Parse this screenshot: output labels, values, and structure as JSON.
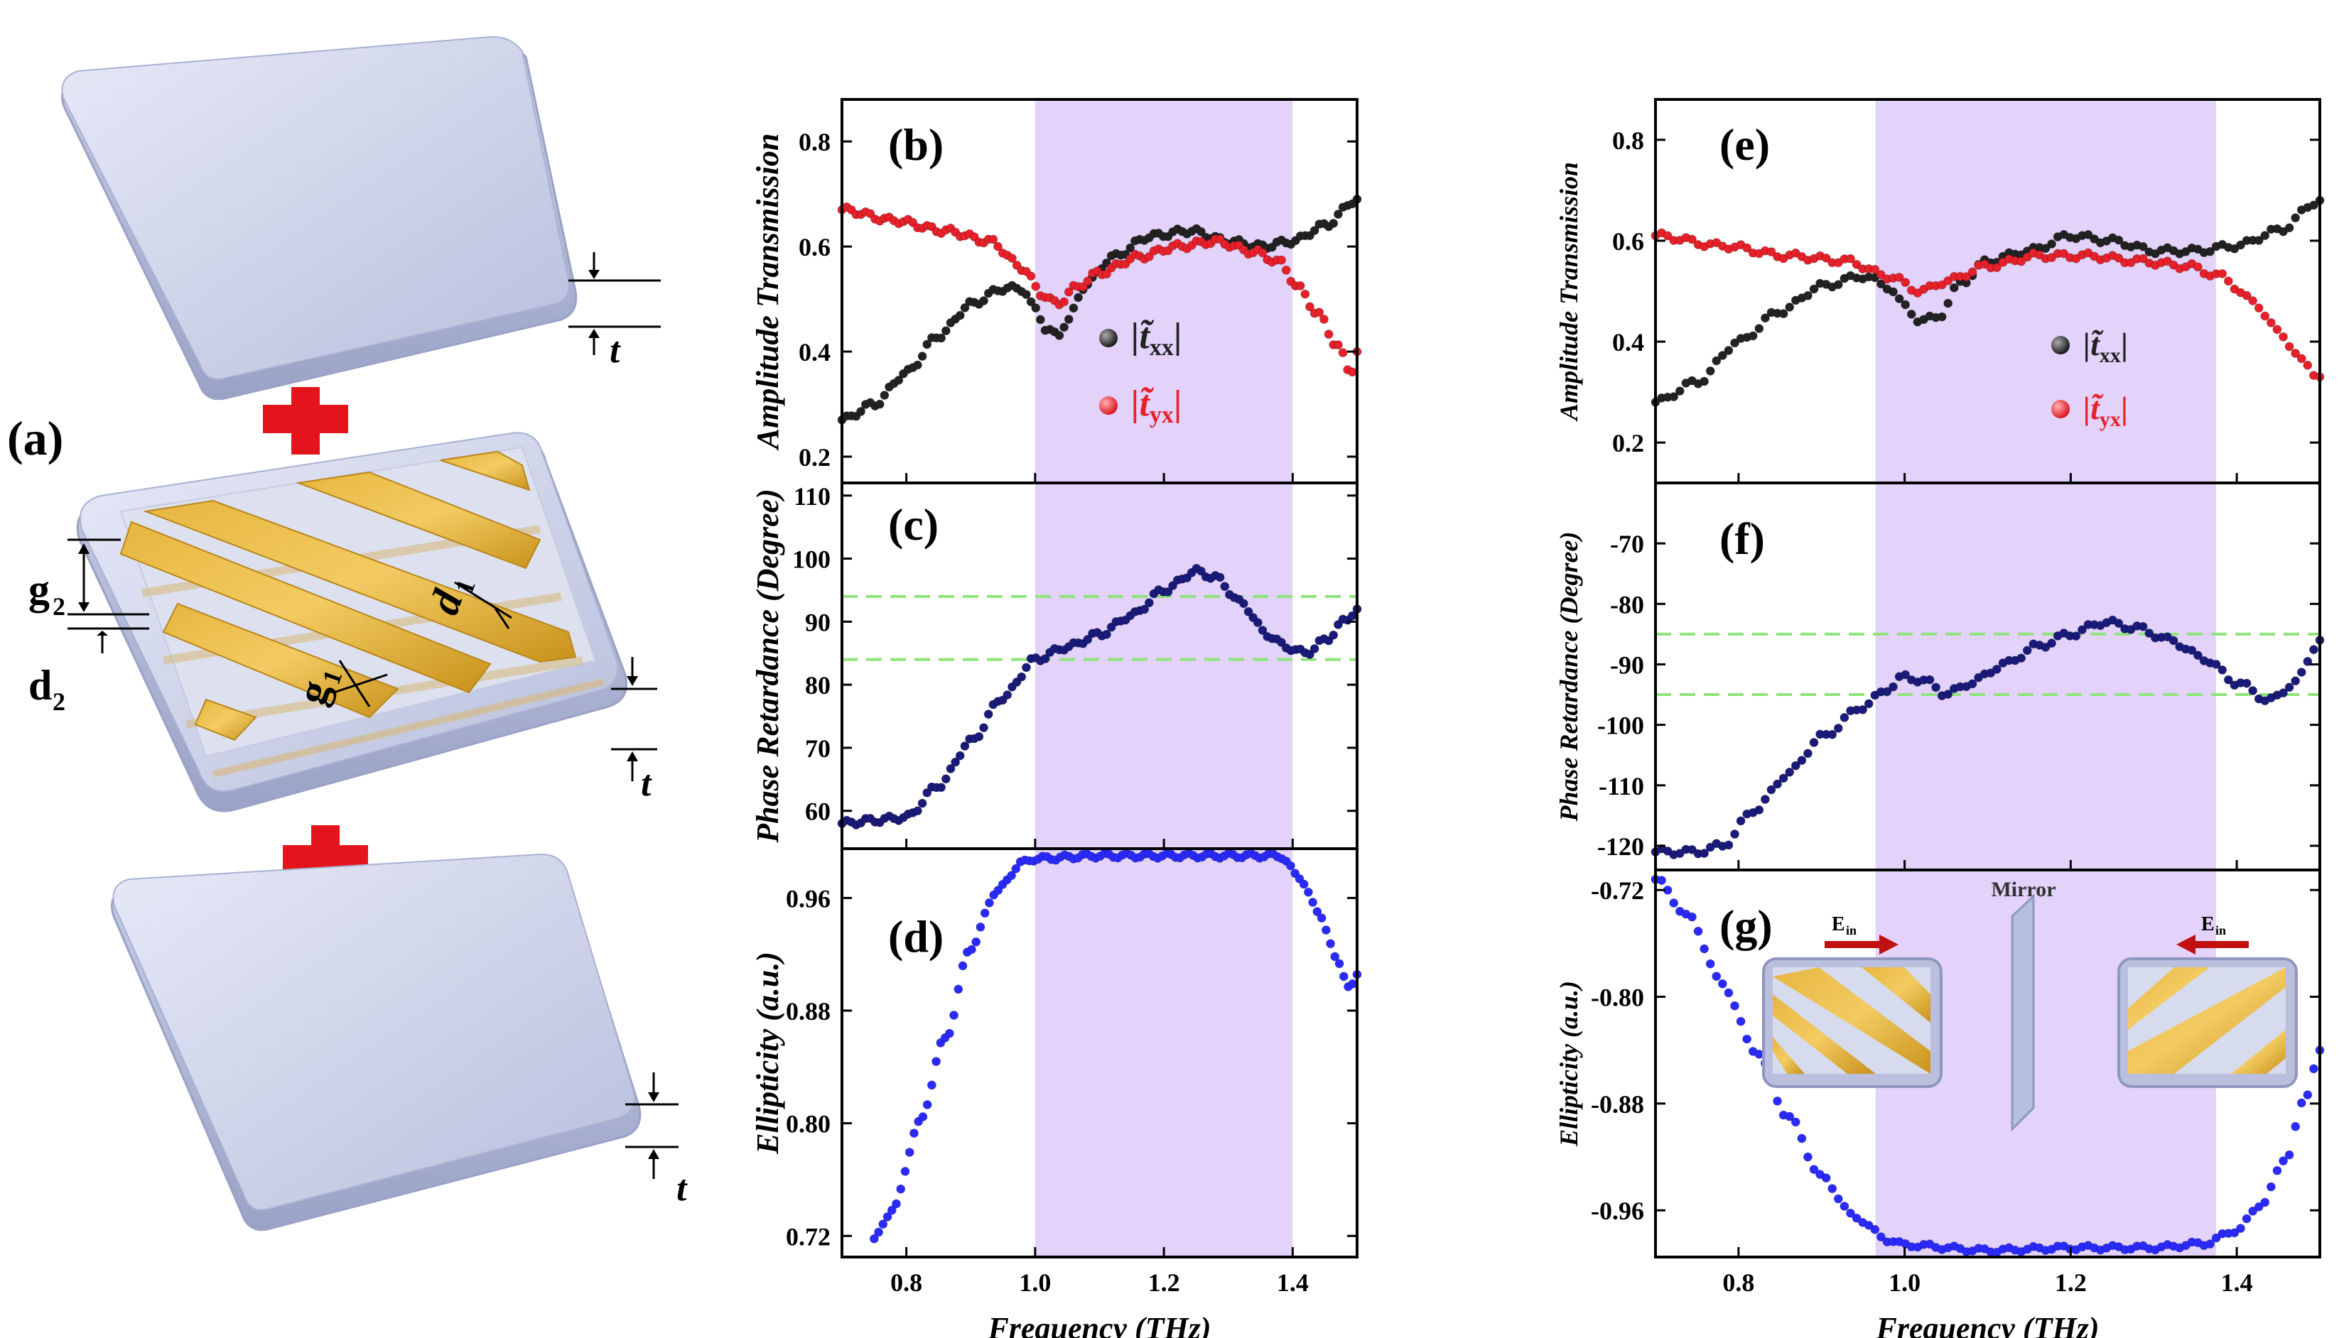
{
  "panel_a": {
    "label": "(a)",
    "dim_t_top": "t",
    "dim_t_mid": "t",
    "dim_t_bot": "t",
    "dim_g2": "g",
    "dim_g2_sub": "2",
    "dim_d2": "d",
    "dim_d2_sub": "2",
    "dim_g1": "g",
    "dim_g1_sub": "1",
    "dim_d1": "d",
    "dim_d1_sub": "1"
  },
  "inset": {
    "mirror_label": "Mirror",
    "ein_left": "E",
    "ein_right": "E",
    "ein_sub": "in"
  },
  "chart_data": [
    {
      "panel": "b",
      "label": "(b)",
      "type": "scatter",
      "ylabel": "Amplitude Transmission",
      "xlabel": "",
      "xlim": [
        0.7,
        1.5
      ],
      "ylim": [
        0.15,
        0.88
      ],
      "yticks": [
        "0.2",
        "0.4",
        "0.6",
        "0.8"
      ],
      "ytick_values": [
        0.2,
        0.4,
        0.6,
        0.8
      ],
      "band": [
        1.0,
        1.4
      ],
      "legend": [
        {
          "text": "|t̃",
          "sub": "xx",
          "tail": "|",
          "color": "#222222"
        },
        {
          "text": "|t̃",
          "sub": "yx",
          "tail": "|",
          "color": "#e8202a"
        }
      ],
      "series": [
        {
          "name": "|t̃xx|",
          "color": "#222222",
          "points": [
            [
              0.7,
              0.27
            ],
            [
              0.75,
              0.3
            ],
            [
              0.8,
              0.36
            ],
            [
              0.85,
              0.43
            ],
            [
              0.9,
              0.49
            ],
            [
              0.95,
              0.52
            ],
            [
              0.98,
              0.52
            ],
            [
              1.0,
              0.48
            ],
            [
              1.02,
              0.44
            ],
            [
              1.035,
              0.43
            ],
            [
              1.05,
              0.46
            ],
            [
              1.08,
              0.53
            ],
            [
              1.12,
              0.58
            ],
            [
              1.18,
              0.62
            ],
            [
              1.24,
              0.63
            ],
            [
              1.3,
              0.61
            ],
            [
              1.35,
              0.6
            ],
            [
              1.4,
              0.61
            ],
            [
              1.45,
              0.64
            ],
            [
              1.5,
              0.69
            ]
          ]
        },
        {
          "name": "|t̃yx|",
          "color": "#e8202a",
          "points": [
            [
              0.7,
              0.67
            ],
            [
              0.78,
              0.65
            ],
            [
              0.86,
              0.63
            ],
            [
              0.93,
              0.61
            ],
            [
              0.98,
              0.56
            ],
            [
              1.01,
              0.51
            ],
            [
              1.035,
              0.49
            ],
            [
              1.06,
              0.52
            ],
            [
              1.1,
              0.55
            ],
            [
              1.16,
              0.58
            ],
            [
              1.22,
              0.6
            ],
            [
              1.28,
              0.61
            ],
            [
              1.34,
              0.59
            ],
            [
              1.38,
              0.57
            ],
            [
              1.41,
              0.52
            ],
            [
              1.44,
              0.47
            ],
            [
              1.47,
              0.41
            ],
            [
              1.49,
              0.36
            ],
            [
              1.5,
              0.4
            ]
          ]
        }
      ]
    },
    {
      "panel": "c",
      "label": "(c)",
      "type": "scatter",
      "ylabel": "Phase Retardance (Degree)",
      "xlabel": "",
      "xlim": [
        0.7,
        1.5
      ],
      "ylim": [
        54,
        112
      ],
      "yticks": [
        "60",
        "70",
        "80",
        "90",
        "100",
        "110"
      ],
      "ytick_values": [
        60,
        70,
        80,
        90,
        100,
        110
      ],
      "band": [
        1.0,
        1.4
      ],
      "hlines": [
        84,
        94
      ],
      "series": [
        {
          "name": "phase",
          "color": "#1a1a7a",
          "points": [
            [
              0.7,
              58
            ],
            [
              0.75,
              58.5
            ],
            [
              0.8,
              59
            ],
            [
              0.85,
              64
            ],
            [
              0.9,
              71
            ],
            [
              0.95,
              78
            ],
            [
              1.0,
              84
            ],
            [
              1.05,
              86
            ],
            [
              1.1,
              88
            ],
            [
              1.15,
              91
            ],
            [
              1.2,
              95
            ],
            [
              1.25,
              98
            ],
            [
              1.28,
              97
            ],
            [
              1.32,
              93
            ],
            [
              1.36,
              88
            ],
            [
              1.39,
              86
            ],
            [
              1.42,
              85
            ],
            [
              1.45,
              87
            ],
            [
              1.48,
              90
            ],
            [
              1.5,
              92
            ]
          ]
        }
      ]
    },
    {
      "panel": "d",
      "label": "(d)",
      "type": "scatter",
      "ylabel": "Ellipticity (a.u.)",
      "xlabel": "Frequency (THz)",
      "xlim": [
        0.7,
        1.5
      ],
      "ylim": [
        0.705,
        0.995
      ],
      "yticks": [
        "0.72",
        "0.80",
        "0.88",
        "0.96"
      ],
      "ytick_values": [
        0.72,
        0.8,
        0.88,
        0.96
      ],
      "xticks": [
        "0.8",
        "1.0",
        "1.2",
        "1.4"
      ],
      "xtick_values": [
        0.8,
        1.0,
        1.2,
        1.4
      ],
      "band": [
        1.0,
        1.4
      ],
      "series": [
        {
          "name": "ellipticity",
          "color": "#2a2aff",
          "points": [
            [
              0.75,
              0.718
            ],
            [
              0.78,
              0.74
            ],
            [
              0.82,
              0.8
            ],
            [
              0.86,
              0.86
            ],
            [
              0.9,
              0.925
            ],
            [
              0.94,
              0.965
            ],
            [
              0.98,
              0.985
            ],
            [
              1.0,
              0.988
            ],
            [
              1.1,
              0.99
            ],
            [
              1.2,
              0.99
            ],
            [
              1.3,
              0.99
            ],
            [
              1.38,
              0.99
            ],
            [
              1.41,
              0.975
            ],
            [
              1.44,
              0.95
            ],
            [
              1.47,
              0.915
            ],
            [
              1.49,
              0.895
            ],
            [
              1.5,
              0.905
            ]
          ]
        }
      ]
    },
    {
      "panel": "e",
      "label": "(e)",
      "type": "scatter",
      "ylabel": "Amplitude Transmission",
      "xlabel": "",
      "xlim": [
        0.7,
        1.5
      ],
      "ylim": [
        0.12,
        0.88
      ],
      "yticks": [
        "0.2",
        "0.4",
        "0.6",
        "0.8"
      ],
      "ytick_values": [
        0.2,
        0.4,
        0.6,
        0.8
      ],
      "band": [
        0.965,
        1.375
      ],
      "legend": [
        {
          "text": "|t̃",
          "sub": "xx",
          "tail": "|",
          "color": "#222222"
        },
        {
          "text": "|t̃",
          "sub": "yx",
          "tail": "|",
          "color": "#e8202a"
        }
      ],
      "series": [
        {
          "name": "|t̃xx|",
          "color": "#222222",
          "points": [
            [
              0.7,
              0.28
            ],
            [
              0.75,
              0.32
            ],
            [
              0.8,
              0.4
            ],
            [
              0.85,
              0.46
            ],
            [
              0.9,
              0.51
            ],
            [
              0.95,
              0.53
            ],
            [
              0.98,
              0.51
            ],
            [
              1.0,
              0.47
            ],
            [
              1.02,
              0.44
            ],
            [
              1.04,
              0.45
            ],
            [
              1.07,
              0.52
            ],
            [
              1.1,
              0.56
            ],
            [
              1.15,
              0.58
            ],
            [
              1.2,
              0.61
            ],
            [
              1.25,
              0.6
            ],
            [
              1.3,
              0.58
            ],
            [
              1.35,
              0.58
            ],
            [
              1.4,
              0.59
            ],
            [
              1.45,
              0.62
            ],
            [
              1.5,
              0.68
            ]
          ]
        },
        {
          "name": "|t̃yx|",
          "color": "#e8202a",
          "points": [
            [
              0.7,
              0.61
            ],
            [
              0.78,
              0.59
            ],
            [
              0.86,
              0.57
            ],
            [
              0.93,
              0.56
            ],
            [
              0.98,
              0.53
            ],
            [
              1.02,
              0.5
            ],
            [
              1.05,
              0.52
            ],
            [
              1.1,
              0.55
            ],
            [
              1.16,
              0.57
            ],
            [
              1.22,
              0.57
            ],
            [
              1.28,
              0.56
            ],
            [
              1.34,
              0.55
            ],
            [
              1.38,
              0.53
            ],
            [
              1.42,
              0.48
            ],
            [
              1.45,
              0.42
            ],
            [
              1.48,
              0.36
            ],
            [
              1.5,
              0.33
            ]
          ]
        }
      ]
    },
    {
      "panel": "f",
      "label": "(f)",
      "type": "scatter",
      "ylabel": "Phase Retardance (Degree)",
      "xlabel": "",
      "xlim": [
        0.7,
        1.5
      ],
      "ylim": [
        -124,
        -60
      ],
      "yticks": [
        "-120",
        "-110",
        "-100",
        "-90",
        "-80",
        "-70"
      ],
      "ytick_values": [
        -120,
        -110,
        -100,
        -90,
        -80,
        -70
      ],
      "band": [
        0.965,
        1.375
      ],
      "hlines": [
        -85,
        -95
      ],
      "series": [
        {
          "name": "phase",
          "color": "#1a1a7a",
          "points": [
            [
              0.7,
              -121
            ],
            [
              0.75,
              -121
            ],
            [
              0.78,
              -120
            ],
            [
              0.82,
              -114
            ],
            [
              0.86,
              -108
            ],
            [
              0.9,
              -102
            ],
            [
              0.95,
              -97
            ],
            [
              0.98,
              -94
            ],
            [
              1.0,
              -92
            ],
            [
              1.03,
              -93
            ],
            [
              1.05,
              -95
            ],
            [
              1.08,
              -93
            ],
            [
              1.12,
              -90
            ],
            [
              1.16,
              -87
            ],
            [
              1.2,
              -85
            ],
            [
              1.24,
              -83
            ],
            [
              1.28,
              -84
            ],
            [
              1.32,
              -86
            ],
            [
              1.36,
              -89
            ],
            [
              1.4,
              -93
            ],
            [
              1.44,
              -96
            ],
            [
              1.47,
              -93
            ],
            [
              1.5,
              -86
            ]
          ]
        }
      ]
    },
    {
      "panel": "g",
      "label": "(g)",
      "type": "scatter",
      "ylabel": "Ellipticity (a.u.)",
      "xlabel": "Frequency (THz)",
      "xlim": [
        0.7,
        1.5
      ],
      "ylim": [
        -0.995,
        -0.705
      ],
      "yticks": [
        "-0.96",
        "-0.88",
        "-0.80",
        "-0.72"
      ],
      "ytick_values": [
        -0.96,
        -0.88,
        -0.8,
        -0.72
      ],
      "xticks": [
        "0.8",
        "1.0",
        "1.2",
        "1.4"
      ],
      "xtick_values": [
        0.8,
        1.0,
        1.2,
        1.4
      ],
      "band": [
        0.965,
        1.375
      ],
      "series": [
        {
          "name": "ellipticity",
          "color": "#2a2aff",
          "points": [
            [
              0.7,
              -0.712
            ],
            [
              0.74,
              -0.74
            ],
            [
              0.78,
              -0.79
            ],
            [
              0.82,
              -0.84
            ],
            [
              0.86,
              -0.89
            ],
            [
              0.9,
              -0.935
            ],
            [
              0.94,
              -0.965
            ],
            [
              0.98,
              -0.982
            ],
            [
              1.0,
              -0.986
            ],
            [
              1.1,
              -0.99
            ],
            [
              1.2,
              -0.988
            ],
            [
              1.3,
              -0.988
            ],
            [
              1.36,
              -0.985
            ],
            [
              1.4,
              -0.975
            ],
            [
              1.43,
              -0.955
            ],
            [
              1.46,
              -0.92
            ],
            [
              1.48,
              -0.88
            ],
            [
              1.5,
              -0.84
            ]
          ]
        }
      ]
    }
  ]
}
